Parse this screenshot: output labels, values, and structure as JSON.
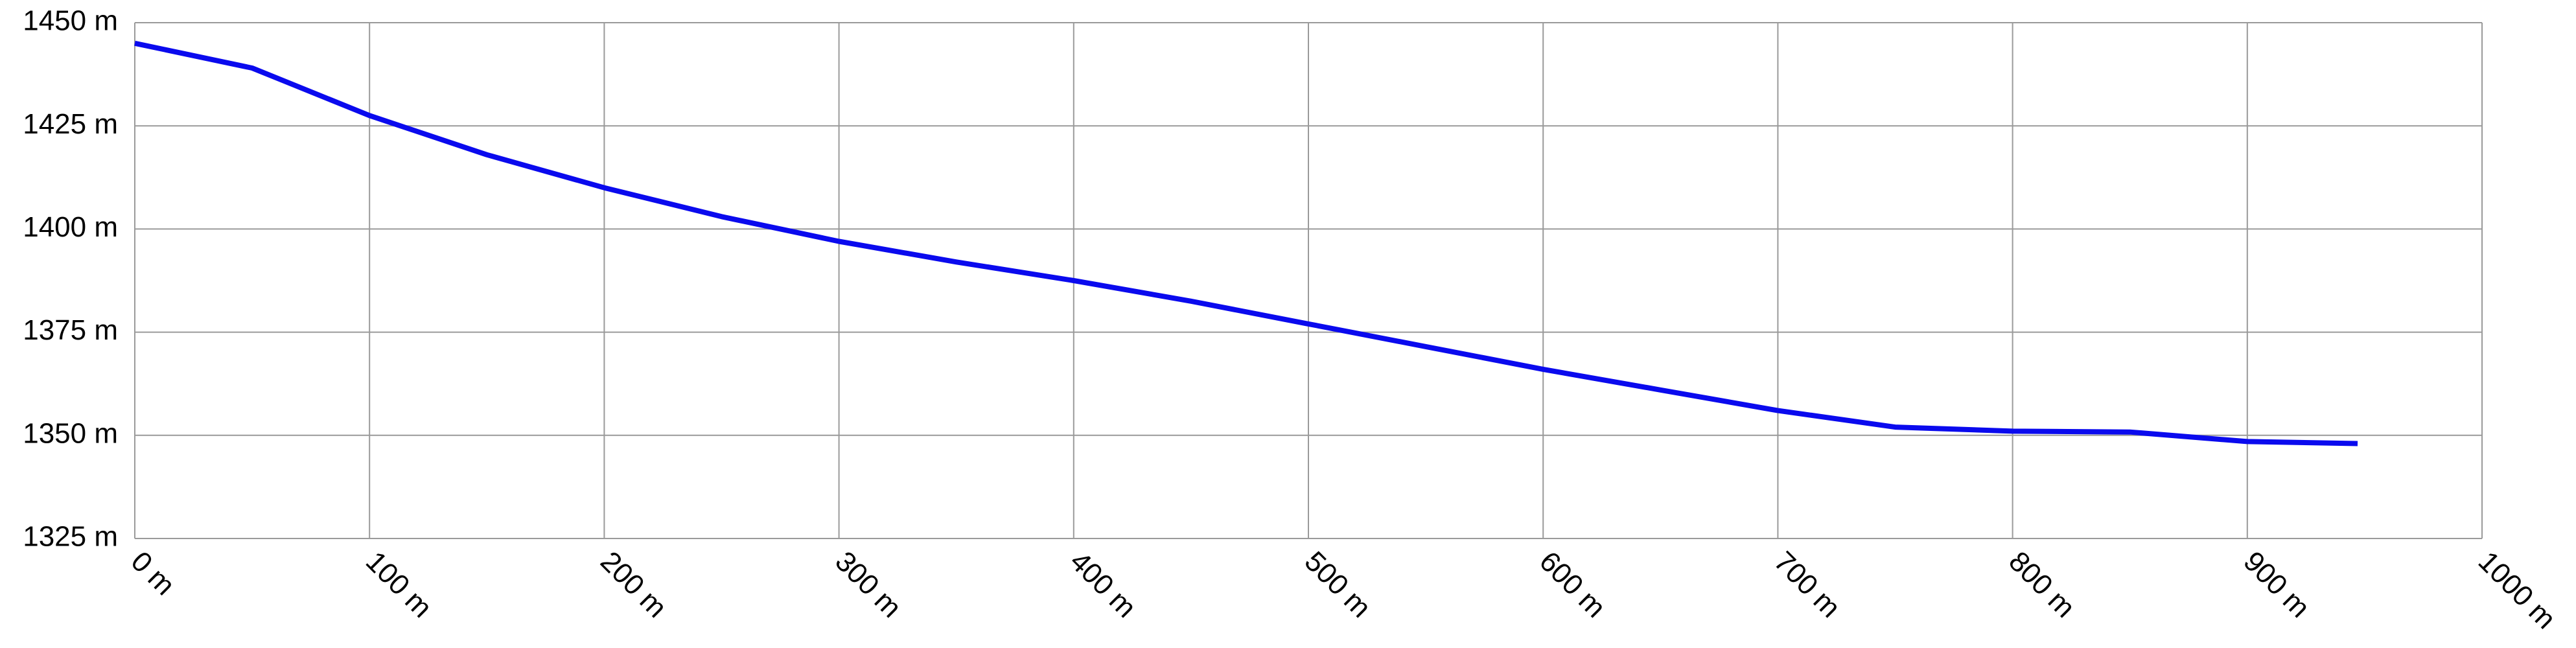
{
  "chart_data": {
    "type": "line",
    "x": [
      0,
      50,
      100,
      150,
      200,
      250,
      300,
      350,
      400,
      450,
      500,
      550,
      600,
      650,
      700,
      750,
      800,
      850,
      900,
      947
    ],
    "values": [
      1445,
      1439,
      1427.5,
      1418,
      1410,
      1403,
      1397,
      1392,
      1387.5,
      1382.5,
      1377,
      1371.5,
      1366,
      1361,
      1356,
      1352,
      1351,
      1350.8,
      1348.5,
      1348
    ],
    "color": "#0a0aee",
    "xlim": [
      0,
      1000
    ],
    "xticks": [
      {
        "value": 0,
        "label": "0 m"
      },
      {
        "value": 100,
        "label": "100 m"
      },
      {
        "value": 200,
        "label": "200 m"
      },
      {
        "value": 300,
        "label": "300 m"
      },
      {
        "value": 400,
        "label": "400 m"
      },
      {
        "value": 500,
        "label": "500 m"
      },
      {
        "value": 600,
        "label": "600 m"
      },
      {
        "value": 700,
        "label": "700 m"
      },
      {
        "value": 800,
        "label": "800 m"
      },
      {
        "value": 900,
        "label": "900 m"
      },
      {
        "value": 1000,
        "label": "1000 m"
      }
    ],
    "ylim": [
      1325,
      1450
    ],
    "yticks": [
      {
        "value": 1325,
        "label": "1325 m"
      },
      {
        "value": 1350,
        "label": "1350 m"
      },
      {
        "value": 1375,
        "label": "1375 m"
      },
      {
        "value": 1400,
        "label": "1400 m"
      },
      {
        "value": 1425,
        "label": "1425 m"
      },
      {
        "value": 1450,
        "label": "1450 m"
      }
    ],
    "grid": true
  }
}
